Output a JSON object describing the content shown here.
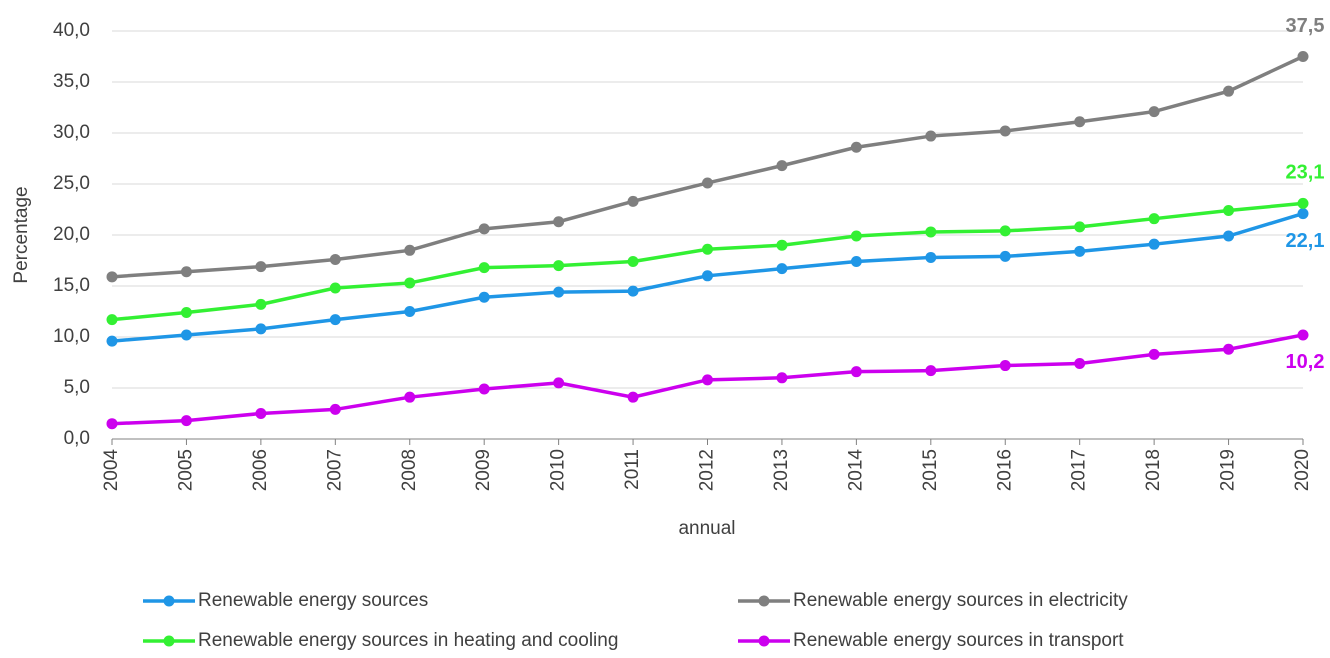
{
  "chart_data": {
    "type": "line",
    "x_label": "annual",
    "y_label": "Percentage",
    "categories": [
      "2004",
      "2005",
      "2006",
      "2007",
      "2008",
      "2009",
      "2010",
      "2011",
      "2012",
      "2013",
      "2014",
      "2015",
      "2016",
      "2017",
      "2018",
      "2019",
      "2020"
    ],
    "ylim": [
      0,
      40
    ],
    "yticks": [
      {
        "value": 0,
        "label": "0,0"
      },
      {
        "value": 5,
        "label": "5,0"
      },
      {
        "value": 10,
        "label": "10,0"
      },
      {
        "value": 15,
        "label": "15,0"
      },
      {
        "value": 20,
        "label": "20,0"
      },
      {
        "value": 25,
        "label": "25,0"
      },
      {
        "value": 30,
        "label": "30,0"
      },
      {
        "value": 35,
        "label": "35,0"
      },
      {
        "value": 40,
        "label": "40,0"
      }
    ],
    "grid": true,
    "series": [
      {
        "name": "Renewable energy sources",
        "color": "#1f96e6",
        "values": [
          9.6,
          10.2,
          10.8,
          11.7,
          12.5,
          13.9,
          14.4,
          14.5,
          16.0,
          16.7,
          17.4,
          17.8,
          17.9,
          18.4,
          19.1,
          19.9,
          22.1
        ],
        "value_labels": [
          null,
          null,
          null,
          null,
          null,
          null,
          null,
          null,
          null,
          null,
          null,
          null,
          null,
          null,
          null,
          null,
          "22,1"
        ]
      },
      {
        "name": "Renewable energy sources in electricity",
        "color": "#7f7f7f",
        "values": [
          15.9,
          16.4,
          16.9,
          17.6,
          18.5,
          20.6,
          21.3,
          23.3,
          25.1,
          26.8,
          28.6,
          29.7,
          30.2,
          31.1,
          32.1,
          34.1,
          37.5
        ],
        "value_labels": [
          null,
          null,
          null,
          null,
          null,
          null,
          null,
          null,
          null,
          null,
          null,
          null,
          null,
          null,
          null,
          null,
          "37,5"
        ]
      },
      {
        "name": "Renewable energy sources in heating and cooling",
        "color": "#33f033",
        "values": [
          11.7,
          12.4,
          13.2,
          14.8,
          15.3,
          16.8,
          17.0,
          17.4,
          18.6,
          19.0,
          19.9,
          20.3,
          20.4,
          20.8,
          21.6,
          22.4,
          23.1
        ],
        "value_labels": [
          null,
          null,
          null,
          null,
          null,
          null,
          null,
          null,
          null,
          null,
          null,
          null,
          null,
          null,
          null,
          null,
          "23,1"
        ]
      },
      {
        "name": "Renewable energy sources in transport",
        "color": "#cc00ee",
        "values": [
          1.5,
          1.8,
          2.5,
          2.9,
          4.1,
          4.9,
          5.5,
          4.1,
          5.8,
          6.0,
          6.6,
          6.7,
          7.2,
          7.4,
          8.3,
          8.8,
          10.2
        ],
        "value_labels": [
          null,
          null,
          null,
          null,
          null,
          null,
          null,
          null,
          null,
          null,
          null,
          null,
          null,
          null,
          null,
          null,
          "10,2"
        ]
      }
    ]
  }
}
